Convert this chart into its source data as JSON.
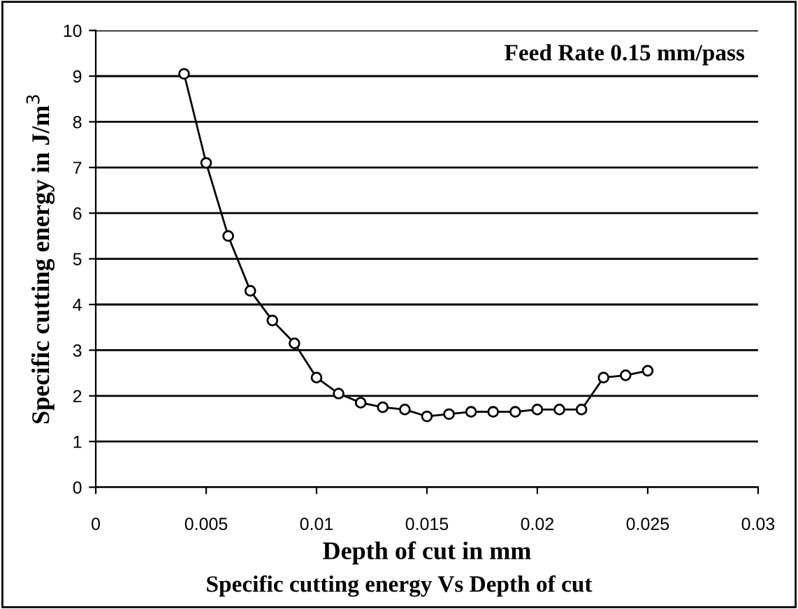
{
  "chart_data": {
    "type": "line",
    "xlabel": "Depth of cut in mm",
    "ylabel": "Specific cutting energy in J/m$^{3}$",
    "annotations": [
      "Feed Rate 0.15 mm/pass",
      "Specific cutting energy Vs Depth of cut"
    ],
    "x": [
      0.004,
      0.005,
      0.006,
      0.007,
      0.008,
      0.009,
      0.01,
      0.011,
      0.012,
      0.013,
      0.014,
      0.015,
      0.016,
      0.017,
      0.018,
      0.019,
      0.02,
      0.021,
      0.022,
      0.023,
      0.024,
      0.025
    ],
    "series": [
      {
        "color": "#000000",
        "values": [
          9.05,
          7.1,
          5.5,
          4.3,
          3.65,
          3.15,
          2.4,
          2.05,
          1.85,
          1.75,
          1.7,
          1.55,
          1.6,
          1.65,
          1.65,
          1.65,
          1.7,
          1.7,
          1.7,
          2.4,
          2.45,
          2.55
        ]
      }
    ],
    "xlim": [
      0,
      0.03
    ],
    "xticks": [
      0,
      0.005,
      0.01,
      0.015,
      0.02,
      0.025,
      0.03
    ],
    "ylim": [
      0,
      10
    ],
    "yticks": [
      0,
      1,
      2,
      3,
      4,
      5,
      6,
      7,
      8,
      9,
      10
    ],
    "grid": "y",
    "marker": "circle",
    "line_style": "solid",
    "legend": false
  }
}
